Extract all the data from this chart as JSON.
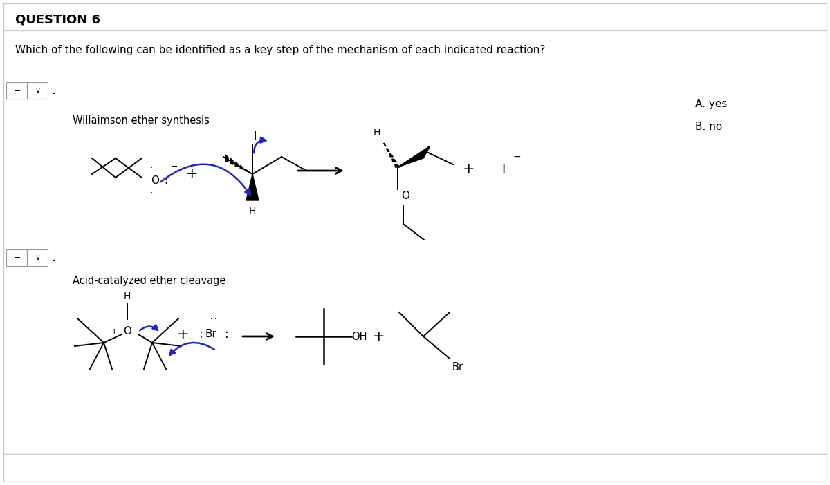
{
  "title": "QUESTION 6",
  "question_text": "Which of the following can be identified as a key step of the mechanism of each indicated reaction?",
  "answer_A": "A. yes",
  "answer_B": "B. no",
  "reaction1_label": "Willaimson ether synthesis",
  "reaction2_label": "Acid-catalyzed ether cleavage",
  "bg_color": "#ffffff",
  "text_color": "#000000",
  "arrow_color": "#2222cc",
  "border_color": "#cccccc"
}
